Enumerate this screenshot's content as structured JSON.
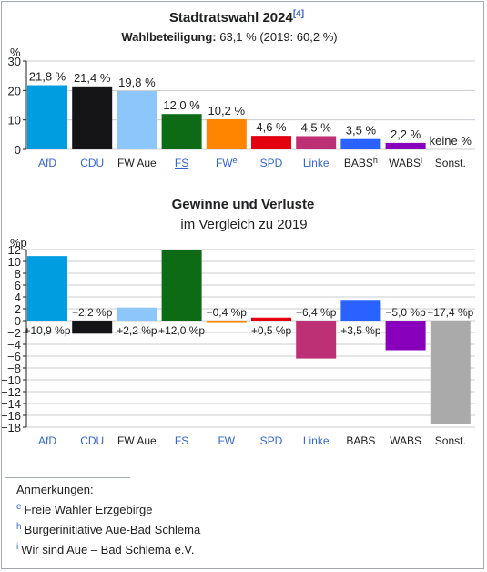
{
  "chart_data": [
    {
      "type": "bar",
      "title": "Stadtratswahl 2024",
      "title_ref": "[4]",
      "subtitle_label": "Wahlbeteiligung:",
      "subtitle_value": "63,1 % (2019: 60,2 %)",
      "ylabel": "%",
      "ylim": [
        0,
        30
      ],
      "yticks": [
        0,
        10,
        20,
        30
      ],
      "grid": true,
      "categories": [
        {
          "name": "AfD",
          "sup": "",
          "link": true,
          "underline": false
        },
        {
          "name": "CDU",
          "sup": "",
          "link": true,
          "underline": false
        },
        {
          "name": "FW Aue",
          "sup": "",
          "link": false,
          "underline": false
        },
        {
          "name": "FS",
          "sup": "",
          "link": true,
          "underline": true
        },
        {
          "name": "FW",
          "sup": "e",
          "link": true,
          "underline": false
        },
        {
          "name": "SPD",
          "sup": "",
          "link": true,
          "underline": false
        },
        {
          "name": "Linke",
          "sup": "",
          "link": true,
          "underline": false
        },
        {
          "name": "BABS",
          "sup": "h",
          "link": false,
          "underline": false
        },
        {
          "name": "WABS",
          "sup": "i",
          "link": false,
          "underline": false
        },
        {
          "name": "Sonst.",
          "sup": "",
          "link": false,
          "underline": false
        }
      ],
      "values": [
        21.8,
        21.4,
        19.8,
        12.0,
        10.2,
        4.6,
        4.5,
        3.5,
        2.2,
        0
      ],
      "labels": [
        "21,8 %",
        "21,4 %",
        "19,8 %",
        "12,0 %",
        "10,2 %",
        "4,6 %",
        "4,5 %",
        "3,5 %",
        "2,2 %",
        "keine %"
      ],
      "colors": [
        "#009ee0",
        "#151518",
        "#8dc6fb",
        "#0d6b16",
        "#ff8400",
        "#e3000f",
        "#be3075",
        "#2a62ff",
        "#8800bb",
        "#aaaaaa"
      ]
    },
    {
      "type": "bar",
      "title": "Gewinne und Verluste",
      "subtitle": "im Vergleich zu 2019",
      "ylabel": "%p",
      "ylim": [
        -18,
        12
      ],
      "yticks": [
        12,
        10,
        8,
        6,
        4,
        2,
        0,
        -2,
        -4,
        -6,
        -8,
        -10,
        -12,
        -14,
        -16,
        -18
      ],
      "ytick_labels": [
        "12",
        "10",
        "8",
        "6",
        "4",
        "2",
        "0",
        "−2",
        "−4",
        "−6",
        "−8",
        "−10",
        "−12",
        "−14",
        "−16",
        "−18"
      ],
      "grid": true,
      "categories": [
        {
          "name": "AfD",
          "link": true
        },
        {
          "name": "CDU",
          "link": true
        },
        {
          "name": "FW Aue",
          "link": false
        },
        {
          "name": "FS",
          "link": true
        },
        {
          "name": "FW",
          "link": true
        },
        {
          "name": "SPD",
          "link": true
        },
        {
          "name": "Linke",
          "link": true
        },
        {
          "name": "BABS",
          "link": false
        },
        {
          "name": "WABS",
          "link": false
        },
        {
          "name": "Sonst.",
          "link": false
        }
      ],
      "values": [
        10.9,
        -2.2,
        2.2,
        12.0,
        -0.4,
        0.5,
        -6.4,
        3.5,
        -5.0,
        -17.4
      ],
      "labels": [
        "+10,9 %p",
        "−2,2 %p",
        "+2,2 %p",
        "+12,0 %p",
        "−0,4 %p",
        "+0,5 %p",
        "−6,4 %p",
        "+3,5 %p",
        "−5,0 %p",
        "−17,4 %p"
      ],
      "colors": [
        "#009ee0",
        "#151518",
        "#8dc6fb",
        "#0d6b16",
        "#ff8400",
        "#e3000f",
        "#be3075",
        "#2a62ff",
        "#8800bb",
        "#aaaaaa"
      ]
    }
  ],
  "notes": {
    "heading": "Anmerkungen:",
    "items": [
      {
        "mark": "e",
        "text": "Freie Wähler Erzgebirge"
      },
      {
        "mark": "h",
        "text": "Bürgerinitiative Aue-Bad Schlema"
      },
      {
        "mark": "i",
        "text": "Wir sind Aue – Bad Schlema e.V."
      }
    ]
  }
}
